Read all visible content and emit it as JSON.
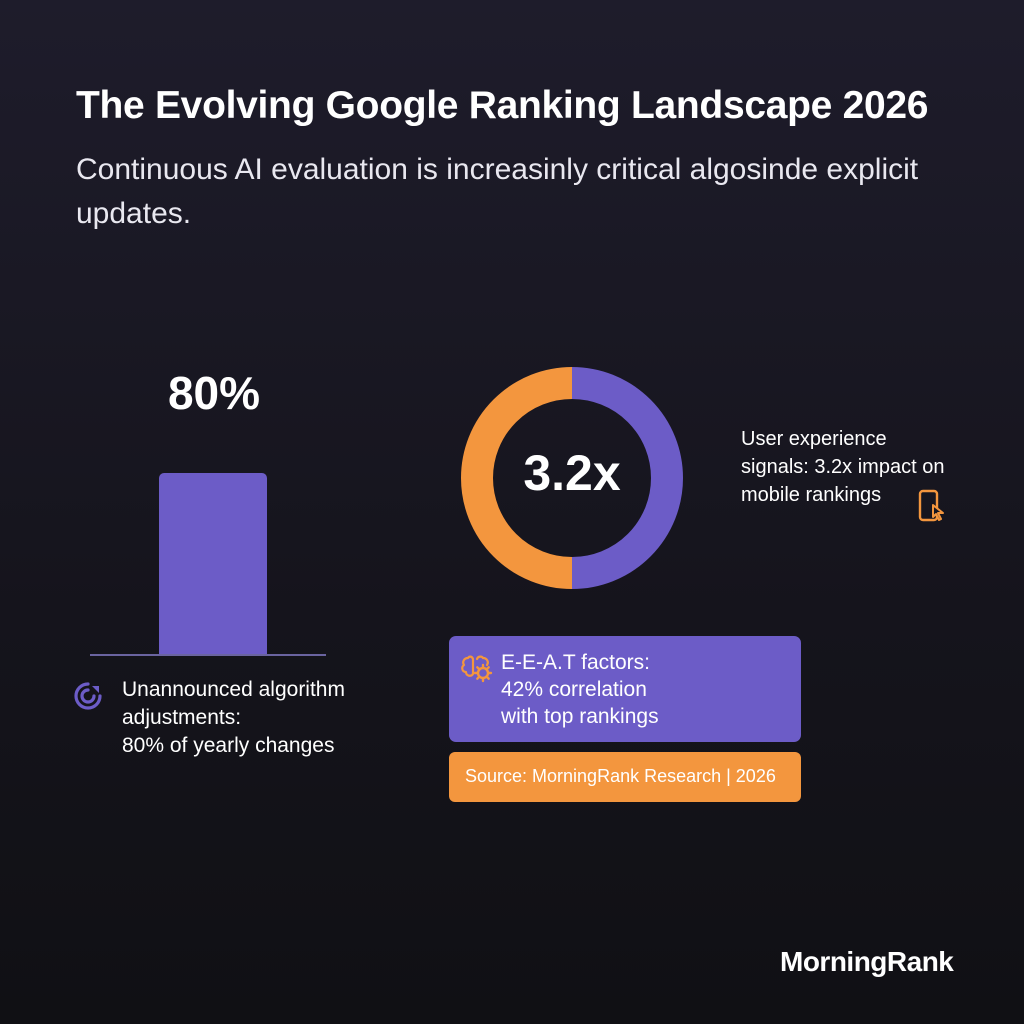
{
  "header": {
    "title": "The Evolving Google Ranking Landscape 2026",
    "subtitle": "Continuous AI evaluation is increasinly critical algosinde explicit updates."
  },
  "chart_data": [
    {
      "type": "bar",
      "categories": [
        ""
      ],
      "values": [
        80
      ],
      "ylim": [
        0,
        100
      ],
      "value_label": "80%",
      "caption": "Unannounced algorithm\nadjustments:\n 80% of yearly changes",
      "colors": {
        "bar": "#6c5cc7",
        "baseline": "#6a64a0"
      }
    },
    {
      "type": "pie",
      "center_label": "3.2x",
      "slices": [
        {
          "value": 50,
          "color": "#6c5cc7"
        },
        {
          "value": 50,
          "color": "#f3963e"
        }
      ],
      "caption": "User experience\nsignals: 3.2x impact on\nmobile rankings"
    }
  ],
  "eeat": {
    "text": "E-E-A.T factors:\n42% correlation\nwith top rankings"
  },
  "source": {
    "text": "Source: MorningRank Research | 2026"
  },
  "brand": {
    "name": "MorningRank"
  },
  "icons": {
    "cycle": "cycle-icon",
    "phone": "phone-touch-icon",
    "brain": "brain-gear-icon"
  },
  "colors": {
    "accent_purple": "#6c5cc7",
    "accent_orange": "#f3963e",
    "background": "#17161f"
  }
}
